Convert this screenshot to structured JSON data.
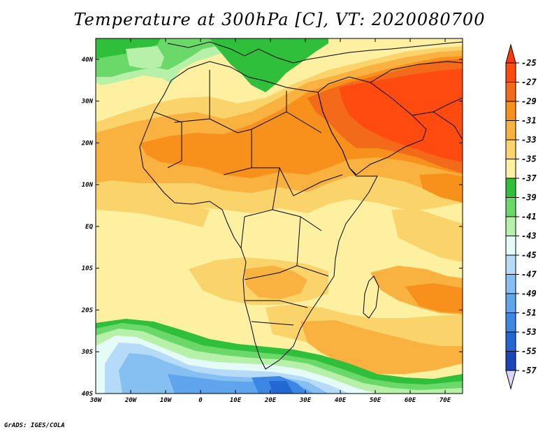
{
  "title": "Temperature at 300hPa [C], VT: 2020080700",
  "credit": "GrADS: IGES/COLA",
  "map": {
    "lon_range": [
      -30,
      75
    ],
    "lat_range": [
      -40,
      45
    ],
    "lon_ticks": [
      {
        "value": -30,
        "label": "30W"
      },
      {
        "value": -20,
        "label": "20W"
      },
      {
        "value": -10,
        "label": "10W"
      },
      {
        "value": 0,
        "label": "0"
      },
      {
        "value": 10,
        "label": "10E"
      },
      {
        "value": 20,
        "label": "20E"
      },
      {
        "value": 30,
        "label": "30E"
      },
      {
        "value": 40,
        "label": "40E"
      },
      {
        "value": 50,
        "label": "50E"
      },
      {
        "value": 60,
        "label": "60E"
      },
      {
        "value": 70,
        "label": "70E"
      }
    ],
    "lat_ticks": [
      {
        "value": 40,
        "label": "40N"
      },
      {
        "value": 30,
        "label": "30N"
      },
      {
        "value": 20,
        "label": "20N"
      },
      {
        "value": 10,
        "label": "10N"
      },
      {
        "value": 0,
        "label": "EQ"
      },
      {
        "value": -10,
        "label": "10S"
      },
      {
        "value": -20,
        "label": "20S"
      },
      {
        "value": -30,
        "label": "30S"
      },
      {
        "value": -40,
        "label": "40S"
      }
    ],
    "colorbar": [
      {
        "label": "-25",
        "color": "#ff4a10"
      },
      {
        "label": "-27",
        "color": "#f26a1a"
      },
      {
        "label": "-29",
        "color": "#f8901c"
      },
      {
        "label": "-31",
        "color": "#f9b240"
      },
      {
        "label": "-33",
        "color": "#fad46a"
      },
      {
        "label": "-35",
        "color": "#fdf0a0"
      },
      {
        "label": "-37",
        "color": "#2fbf3a"
      },
      {
        "label": "-39",
        "color": "#6bd86a"
      },
      {
        "label": "-41",
        "color": "#b7f0a8"
      },
      {
        "label": "-43",
        "color": "#e4fbf7"
      },
      {
        "label": "-45",
        "color": "#b6dbf9"
      },
      {
        "label": "-47",
        "color": "#86c0f2"
      },
      {
        "label": "-49",
        "color": "#5ea5ed"
      },
      {
        "label": "-51",
        "color": "#3c86e4"
      },
      {
        "label": "-53",
        "color": "#2467d2"
      },
      {
        "label": "-55",
        "color": "#1848b8"
      },
      {
        "label": "-57",
        "color": "#0b1f7c"
      }
    ],
    "colorbar_top_color": "#ff3808",
    "colorbar_bottom_color": "#dcd6f6"
  }
}
